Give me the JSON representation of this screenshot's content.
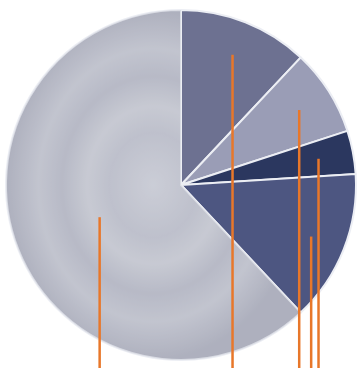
{
  "chart_data": {
    "type": "pie",
    "values": [
      12,
      8,
      4,
      14,
      62
    ],
    "colors": [
      "#6d7191",
      "#9a9db6",
      "#2b375f",
      "#4d5681",
      "#b7b9c6"
    ]
  }
}
